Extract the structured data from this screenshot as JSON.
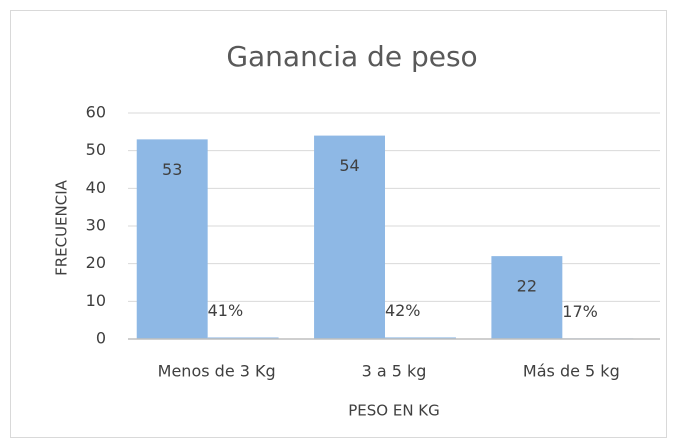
{
  "chart_data": {
    "type": "bar",
    "title": "Ganancia de peso",
    "x_label": "PESO EN KG",
    "y_label": "FRECUENCIA",
    "categories": [
      "Menos de 3 Kg",
      "3 a 5 kg",
      "Más de 5 kg"
    ],
    "series": [
      {
        "color": "#8eb8e5",
        "values": [
          53,
          54,
          22
        ]
      },
      {
        "color": "#8eb8e5",
        "values": [
          0.41,
          0.42,
          0.17
        ],
        "value_labels": [
          "41%",
          "42%",
          "17%"
        ]
      }
    ],
    "ylim": [
      0,
      60
    ],
    "yticks": [
      0,
      10,
      20,
      30,
      40,
      50,
      60
    ],
    "grid": true
  }
}
